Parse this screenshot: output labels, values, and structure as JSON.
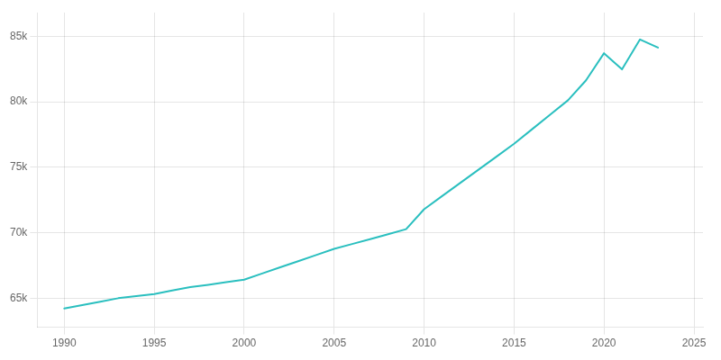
{
  "chart_data": {
    "type": "line",
    "x": [
      1990,
      1991,
      1992,
      1993,
      1994,
      1995,
      1996,
      1997,
      1998,
      1999,
      2000,
      2001,
      2002,
      2003,
      2004,
      2005,
      2006,
      2007,
      2008,
      2009,
      2010,
      2011,
      2012,
      2013,
      2014,
      2015,
      2016,
      2017,
      2018,
      2019,
      2020,
      2021,
      2022,
      2023
    ],
    "values": [
      64224,
      64487,
      64750,
      65013,
      65175,
      65337,
      65600,
      65863,
      66040,
      66237,
      66430,
      66900,
      67370,
      67840,
      68310,
      68780,
      69150,
      69520,
      69900,
      70280,
      71802,
      72800,
      73798,
      74796,
      75794,
      76792,
      77900,
      79008,
      80116,
      81632,
      83701,
      82468,
      84753,
      84130
    ],
    "color": "#2ABFBF",
    "xlim": [
      1988.5,
      2025.5
    ],
    "ylim": [
      62800,
      86800
    ],
    "xticks": [
      1990,
      1995,
      2000,
      2005,
      2010,
      2015,
      2020,
      2025
    ],
    "yticks": [
      {
        "value": 65000,
        "label": "65k"
      },
      {
        "value": 70000,
        "label": "70k"
      },
      {
        "value": 75000,
        "label": "75k"
      },
      {
        "value": 80000,
        "label": "80k"
      },
      {
        "value": 85000,
        "label": "85k"
      }
    ],
    "grid": true
  }
}
